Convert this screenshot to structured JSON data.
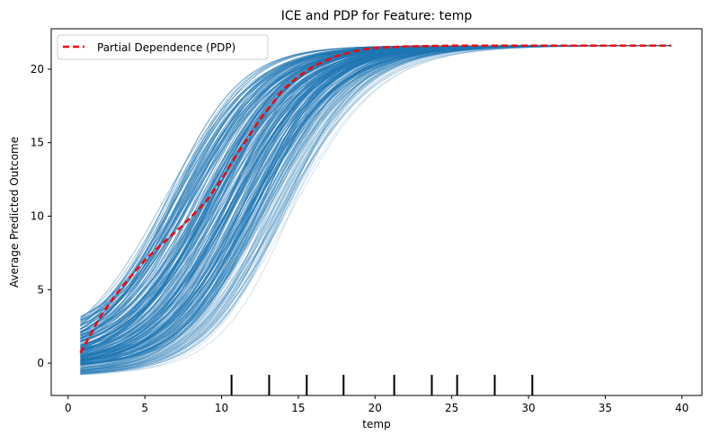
{
  "chart_data": {
    "type": "line",
    "title": "ICE and PDP for Feature: temp",
    "xlabel": "temp",
    "ylabel": "Average Predicted Outcome",
    "xlim": [
      -1.1,
      41.3
    ],
    "ylim": [
      -2.2,
      22.75
    ],
    "xticks": [
      0,
      5,
      10,
      15,
      20,
      25,
      30,
      35,
      40
    ],
    "yticks": [
      0,
      5,
      10,
      15,
      20
    ],
    "grid": false,
    "legend": {
      "placement": "top-left",
      "entries": [
        "Partial Dependence (PDP)"
      ]
    },
    "colors": {
      "ice": "#1f77b4",
      "pdp": "#ff0000"
    },
    "pdp": {
      "name": "Partial Dependence (PDP)",
      "x": [
        0.8,
        1.5,
        2,
        3,
        4,
        5,
        6,
        7.5,
        9,
        10,
        11,
        12.5,
        14,
        15,
        16,
        17.5,
        19,
        20,
        22,
        25,
        30,
        35,
        39.3
      ],
      "y": [
        0.7,
        2,
        3,
        4.5,
        5.8,
        7,
        8,
        9.4,
        11,
        12.5,
        14.2,
        16.6,
        18.6,
        19.5,
        20.2,
        20.9,
        21.3,
        21.45,
        21.55,
        21.6,
        21.6,
        21.6,
        21.6
      ]
    },
    "ice": {
      "x_range": [
        0.8,
        39.3
      ],
      "start_range": [
        -0.8,
        3.2
      ],
      "plateau": 21.6
    },
    "rug": [
      10.65,
      13.1,
      15.55,
      17.95,
      21.25,
      23.7,
      25.35,
      27.8,
      30.25
    ]
  }
}
